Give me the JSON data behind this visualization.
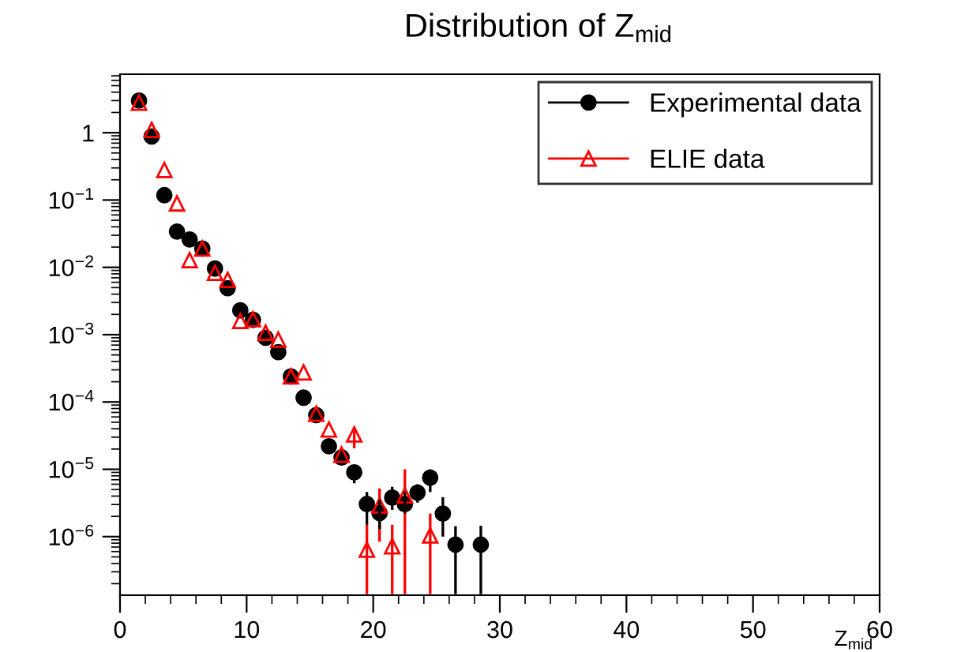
{
  "chart_data": {
    "type": "scatter",
    "title": "Distribution of Z$_{mid}$",
    "xlabel": "Z$_{mid}$",
    "xlim": [
      0,
      60
    ],
    "xticks": [
      0,
      10,
      20,
      30,
      40,
      50,
      60
    ],
    "ylim": [
      1.35e-07,
      7.4
    ],
    "log": true,
    "yticks": [
      {
        "value": 1e-06,
        "label": "10$^{−6}$"
      },
      {
        "value": 1e-05,
        "label": "10$^{−5}$"
      },
      {
        "value": 0.0001,
        "label": "10$^{−4}$"
      },
      {
        "value": 0.001,
        "label": "10$^{−3}$"
      },
      {
        "value": 0.01,
        "label": "10$^{−2}$"
      },
      {
        "value": 0.1,
        "label": "10$^{−1}$"
      },
      1
    ],
    "grid": false,
    "legend": "top right",
    "series": [
      {
        "name": "Experimental data",
        "color": "#000000",
        "marker": "circle",
        "x": [
          1.5,
          2.5,
          3.5,
          4.5,
          5.5,
          6.5,
          7.5,
          8.5,
          9.5,
          10.5,
          11.5,
          12.5,
          13.5,
          14.5,
          15.5,
          16.5,
          17.5,
          18.5,
          19.5,
          20.5,
          21.5,
          22.5,
          23.5,
          24.5,
          25.5,
          26.5,
          27.5,
          28.5
        ],
        "values": [
          3.0,
          0.88,
          0.118,
          0.034,
          0.026,
          0.019,
          0.0096,
          0.0049,
          0.0023,
          0.00166,
          0.0009,
          0.00055,
          0.00024,
          0.000116,
          6.4e-05,
          2.2e-05,
          1.5e-05,
          9e-06,
          3.05e-06,
          2.24e-06,
          3.8e-06,
          3.05e-06,
          4.5e-06,
          7.5e-06,
          2.2e-06,
          7.6e-07,
          null,
          7.6e-07
        ],
        "errors": [
          null,
          null,
          null,
          null,
          null,
          null,
          null,
          null,
          null,
          null,
          null,
          null,
          null,
          null,
          null,
          null,
          null,
          [
            6.2e-06,
            1.13e-05
          ],
          [
            1.5e-06,
            4.6e-06
          ],
          [
            1.3e-06,
            3.5e-06
          ],
          [
            2.5e-06,
            5.5e-06
          ],
          [
            2.2e-06,
            4.6e-06
          ],
          [
            3.2e-06,
            6e-06
          ],
          [
            4.6e-06,
            1e-05
          ],
          [
            1e-06,
            3.85e-06
          ],
          [
            1.4e-07,
            1.43e-06
          ],
          null,
          [
            1.4e-07,
            1.45e-06
          ]
        ]
      },
      {
        "name": "ELIE data",
        "color": "#ff0000",
        "marker": "triangle",
        "x": [
          1.5,
          2.5,
          3.5,
          4.5,
          5.5,
          6.5,
          7.5,
          8.5,
          9.5,
          10.5,
          11.5,
          12.5,
          13.5,
          14.5,
          15.5,
          16.5,
          17.5,
          18.5,
          19.5,
          20.5,
          21.5,
          22.5,
          23.5,
          24.5
        ],
        "values": [
          2.8,
          1.1,
          0.28,
          0.089,
          0.0128,
          0.019,
          0.0083,
          0.0065,
          0.0016,
          0.0017,
          0.00107,
          0.00084,
          0.00024,
          0.000275,
          6.7e-05,
          3.9e-05,
          1.65e-05,
          3.3e-05,
          6.4e-07,
          2.9e-06,
          7.2e-07,
          4.1e-06,
          null,
          1.04e-06
        ],
        "errors": [
          null,
          null,
          null,
          null,
          null,
          null,
          null,
          null,
          null,
          null,
          null,
          null,
          null,
          null,
          null,
          null,
          null,
          [
            2.05e-05,
            4.2e-05
          ],
          [
            1.4e-07,
            1.5e-06
          ],
          [
            8.4e-07,
            5.2e-06
          ],
          [
            1.4e-07,
            1.5e-06
          ],
          [
            1.4e-07,
            1e-05
          ],
          null,
          [
            1.4e-07,
            2.2e-06
          ]
        ]
      }
    ]
  }
}
